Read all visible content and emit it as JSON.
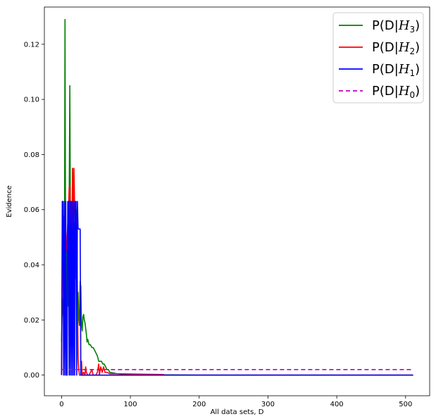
{
  "chart_data": {
    "type": "line",
    "xlabel": "All data sets, D",
    "ylabel": "Evidence",
    "xlim": [
      -25,
      535
    ],
    "ylim": [
      -0.0075,
      0.1335
    ],
    "xticks": [
      0,
      100,
      200,
      300,
      400,
      500
    ],
    "yticks": [
      0.0,
      0.02,
      0.04,
      0.06,
      0.08,
      0.1,
      0.12
    ],
    "ytick_labels": [
      "0.00",
      "0.02",
      "0.04",
      "0.06",
      "0.08",
      "0.10",
      "0.12"
    ],
    "grid": false,
    "legend_position": "top-right",
    "series": [
      {
        "name": "P(D|H3)",
        "label_main": "P(D|",
        "label_var": "H",
        "label_sub": "3",
        "label_end": ")",
        "color": "#008000",
        "dash": "solid",
        "points": [
          [
            0,
            0.012
          ],
          [
            1,
            0.028
          ],
          [
            2,
            0.024
          ],
          [
            3,
            0.02
          ],
          [
            4,
            0.016
          ],
          [
            5,
            0.129
          ],
          [
            6,
            0.02
          ],
          [
            7,
            0.007
          ],
          [
            8,
            0.05
          ],
          [
            9,
            0.025
          ],
          [
            10,
            0.04
          ],
          [
            11,
            0.06
          ],
          [
            12,
            0.105
          ],
          [
            13,
            0.045
          ],
          [
            14,
            0.063
          ],
          [
            15,
            0.025
          ],
          [
            16,
            0.075
          ],
          [
            17,
            0.05
          ],
          [
            18,
            0.04
          ],
          [
            19,
            0.055
          ],
          [
            20,
            0.035
          ],
          [
            21,
            0.05
          ],
          [
            22,
            0.06
          ],
          [
            23,
            0.025
          ],
          [
            24,
            0.03
          ],
          [
            25,
            0.02
          ],
          [
            26,
            0.018
          ],
          [
            27,
            0.034
          ],
          [
            28,
            0.032
          ],
          [
            29,
            0.018
          ],
          [
            30,
            0.016
          ],
          [
            31,
            0.021
          ],
          [
            32,
            0.022
          ],
          [
            33,
            0.02
          ],
          [
            34,
            0.019
          ],
          [
            35,
            0.017
          ],
          [
            36,
            0.015
          ],
          [
            37,
            0.012
          ],
          [
            38,
            0.013
          ],
          [
            40,
            0.011
          ],
          [
            42,
            0.011
          ],
          [
            44,
            0.01
          ],
          [
            46,
            0.01
          ],
          [
            48,
            0.009
          ],
          [
            50,
            0.008
          ],
          [
            52,
            0.007
          ],
          [
            54,
            0.005
          ],
          [
            56,
            0.005
          ],
          [
            58,
            0.005
          ],
          [
            60,
            0.004
          ],
          [
            62,
            0.004
          ],
          [
            64,
            0.003
          ],
          [
            66,
            0.002
          ],
          [
            68,
            0.002
          ],
          [
            70,
            0.001
          ],
          [
            75,
            0.0008
          ],
          [
            80,
            0.0005
          ],
          [
            90,
            0.0003
          ],
          [
            100,
            0.0002
          ],
          [
            150,
            0.0001
          ],
          [
            200,
            0.0
          ],
          [
            511,
            0.0
          ]
        ]
      },
      {
        "name": "P(D|H2)",
        "label_main": "P(D|",
        "label_var": "H",
        "label_sub": "2",
        "label_end": ")",
        "color": "#ff0000",
        "dash": "solid",
        "points": [
          [
            0,
            0.0
          ],
          [
            1,
            0.045
          ],
          [
            2,
            0.058
          ],
          [
            3,
            0.056
          ],
          [
            4,
            0.052
          ],
          [
            5,
            0.048
          ],
          [
            6,
            0.048
          ],
          [
            7,
            0.045
          ],
          [
            8,
            0.05
          ],
          [
            9,
            0.055
          ],
          [
            10,
            0.058
          ],
          [
            11,
            0.068
          ],
          [
            12,
            0.069
          ],
          [
            13,
            0.054
          ],
          [
            14,
            0.062
          ],
          [
            15,
            0.05
          ],
          [
            16,
            0.075
          ],
          [
            17,
            0.04
          ],
          [
            18,
            0.075
          ],
          [
            19,
            0.06
          ],
          [
            20,
            0.056
          ],
          [
            21,
            0.054
          ],
          [
            22,
            0.057
          ],
          [
            23,
            0.03
          ],
          [
            24,
            0.006
          ],
          [
            25,
            0.002
          ],
          [
            26,
            0.0
          ],
          [
            28,
            0.0
          ],
          [
            29,
            0.005
          ],
          [
            30,
            0.0
          ],
          [
            32,
            0.001
          ],
          [
            34,
            0.0
          ],
          [
            35,
            0.003
          ],
          [
            36,
            0.001
          ],
          [
            38,
            0.0
          ],
          [
            40,
            0.0
          ],
          [
            44,
            0.002
          ],
          [
            46,
            0.0
          ],
          [
            50,
            0.0
          ],
          [
            52,
            0.001
          ],
          [
            54,
            0.004
          ],
          [
            55,
            0.0
          ],
          [
            57,
            0.003
          ],
          [
            59,
            0.001
          ],
          [
            61,
            0.003
          ],
          [
            63,
            0.001
          ],
          [
            66,
            0.001
          ],
          [
            70,
            0.0005
          ],
          [
            80,
            0.0005
          ],
          [
            100,
            0.0004
          ],
          [
            120,
            0.0003
          ],
          [
            148,
            0.0002
          ],
          [
            150,
            0.0
          ],
          [
            511,
            0.0
          ]
        ]
      },
      {
        "name": "P(D|H1)",
        "label_main": "P(D|",
        "label_var": "H",
        "label_sub": "1",
        "label_end": ")",
        "color": "#0000ff",
        "dash": "solid",
        "points": [
          [
            0,
            0.0
          ],
          [
            1,
            0.063
          ],
          [
            2,
            0.063
          ],
          [
            3,
            0.0
          ],
          [
            4,
            0.063
          ],
          [
            5,
            0.0
          ],
          [
            6,
            0.063
          ],
          [
            7,
            0.0
          ],
          [
            8,
            0.0
          ],
          [
            9,
            0.063
          ],
          [
            10,
            0.063
          ],
          [
            11,
            0.0
          ],
          [
            12,
            0.063
          ],
          [
            13,
            0.0
          ],
          [
            14,
            0.063
          ],
          [
            15,
            0.0
          ],
          [
            16,
            0.063
          ],
          [
            17,
            0.0
          ],
          [
            18,
            0.063
          ],
          [
            19,
            0.0
          ],
          [
            20,
            0.063
          ],
          [
            21,
            0.063
          ],
          [
            22,
            0.0
          ],
          [
            23,
            0.063
          ],
          [
            24,
            0.053
          ],
          [
            25,
            0.053
          ],
          [
            26,
            0.053
          ],
          [
            27,
            0.053
          ],
          [
            28,
            0.0
          ],
          [
            30,
            0.0
          ],
          [
            40,
            0.0
          ],
          [
            70,
            0.0
          ],
          [
            511,
            0.0
          ]
        ]
      },
      {
        "name": "P(D|H0)",
        "label_main": "P(D|",
        "label_var": "H",
        "label_sub": "0",
        "label_end": ")",
        "color": "#bf00bf",
        "dash": "dashed",
        "points": [
          [
            0,
            0.002
          ],
          [
            511,
            0.002
          ]
        ]
      }
    ]
  }
}
